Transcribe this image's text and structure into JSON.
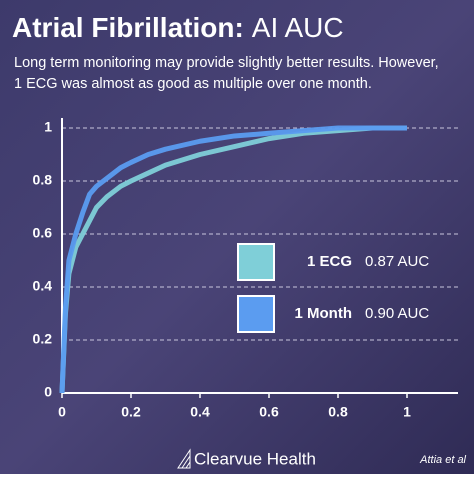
{
  "chart_data": {
    "type": "line",
    "title_bold": "Atrial Fibrillation:",
    "title_light": "AI AUC",
    "subtitle": [
      "Long term monitoring may provide slightly better results. However,",
      "1 ECG was almost as good as multiple over one month."
    ],
    "x": [
      0,
      0.01,
      0.02,
      0.04,
      0.06,
      0.08,
      0.1,
      0.13,
      0.17,
      0.2,
      0.25,
      0.3,
      0.4,
      0.5,
      0.6,
      0.7,
      0.8,
      0.9,
      1
    ],
    "series": [
      {
        "name": "1 ECG",
        "auc_label": "0.87 AUC",
        "color": "#7fcfd8",
        "values": [
          0,
          0.3,
          0.45,
          0.55,
          0.6,
          0.65,
          0.7,
          0.74,
          0.78,
          0.8,
          0.83,
          0.86,
          0.9,
          0.93,
          0.96,
          0.98,
          0.99,
          1,
          1
        ]
      },
      {
        "name": "1 Month",
        "auc_label": "0.90 AUC",
        "color": "#5b9cf0",
        "values": [
          0,
          0.32,
          0.5,
          0.6,
          0.68,
          0.75,
          0.78,
          0.81,
          0.85,
          0.87,
          0.9,
          0.92,
          0.95,
          0.97,
          0.98,
          0.99,
          1,
          1,
          1
        ]
      }
    ],
    "xlim": [
      0,
      1
    ],
    "ylim": [
      0,
      1
    ],
    "xticks": [
      0,
      0.2,
      0.4,
      0.6,
      0.8,
      1
    ],
    "yticks": [
      0,
      0.2,
      0.4,
      0.6,
      0.8,
      1
    ],
    "grid": true,
    "brand": "Clearvue Health",
    "source": "Attia et al"
  }
}
